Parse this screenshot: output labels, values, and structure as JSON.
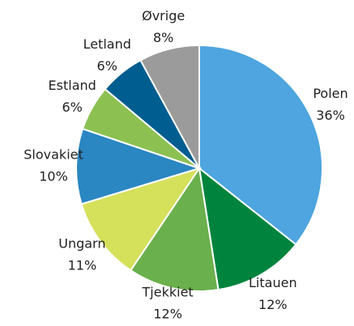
{
  "chart_data": {
    "type": "pie",
    "categories": [
      "Polen",
      "Litauen",
      "Tjekkiet",
      "Ungarn",
      "Slovakiet",
      "Estland",
      "Letland",
      "Øvrige"
    ],
    "values": [
      36,
      12,
      12,
      11,
      10,
      6,
      6,
      8
    ],
    "value_labels": [
      "36%",
      "12%",
      "12%",
      "11%",
      "10%",
      "6%",
      "6%",
      "8%"
    ],
    "colors": [
      "#4ea5df",
      "#00843d",
      "#6ab04c",
      "#d5e05b",
      "#2a87c1",
      "#8cc152",
      "#005d8f",
      "#9b9b9b"
    ]
  }
}
